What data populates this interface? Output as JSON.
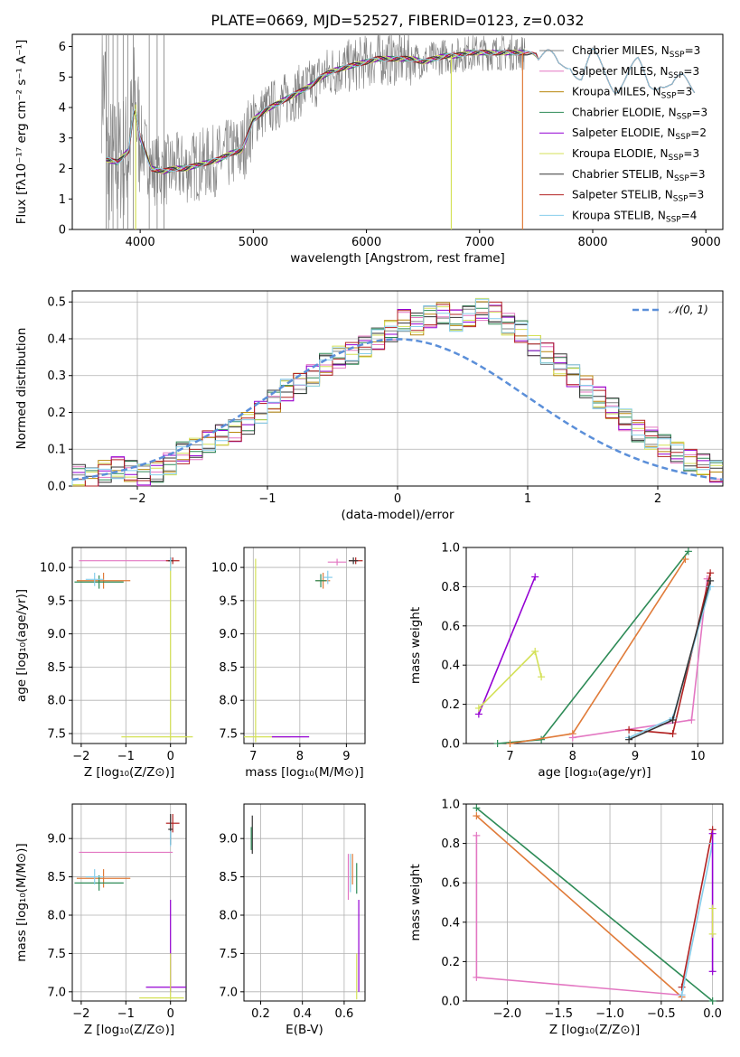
{
  "title": "PLATE=0669, MJD=52527, FIBERID=0123, z=0.032",
  "models": [
    {
      "name": "Chabrier MILES, N",
      "nssp": "3",
      "color": "#808080"
    },
    {
      "name": "Salpeter MILES, N",
      "nssp": "3",
      "color": "#e377c2"
    },
    {
      "name": "Kroupa MILES, N",
      "nssp": "3",
      "color": "#b8860b"
    },
    {
      "name": "Chabrier ELODIE, N",
      "nssp": "3",
      "color": "#2e8b57"
    },
    {
      "name": "Salpeter ELODIE, N",
      "nssp": "2",
      "color": "#9400d3"
    },
    {
      "name": "Kroupa ELODIE, N",
      "nssp": "3",
      "color": "#d4e157"
    },
    {
      "name": "Chabrier STELIB, N",
      "nssp": "3",
      "color": "#333333"
    },
    {
      "name": "Salpeter STELIB, N",
      "nssp": "3",
      "color": "#b22222"
    },
    {
      "name": "Kroupa STELIB, N",
      "nssp": "4",
      "color": "#87ceeb"
    }
  ],
  "nssp_sub": "SSP",
  "chart_data": [
    {
      "id": "spectrum",
      "type": "line",
      "xlabel": "wavelength [Angstrom, rest frame]",
      "ylabel": "Flux [fλ10⁻¹⁷ erg cm⁻² s⁻¹ A⁻¹]",
      "xlim": [
        3400,
        9150
      ],
      "ylim": [
        0,
        6.4
      ],
      "xticks": [
        "4000",
        "5000",
        "6000",
        "7000",
        "8000",
        "9000"
      ],
      "yticks": [
        "0",
        "1",
        "2",
        "3",
        "4",
        "5",
        "6"
      ],
      "continuum": {
        "x": [
          3700,
          3800,
          3900,
          3950,
          4000,
          4100,
          4200,
          4300,
          4400,
          4500,
          4600,
          4700,
          4800,
          4900,
          5000,
          5100,
          5200,
          5300,
          5400,
          5500,
          5600,
          5700,
          5800,
          5900,
          6000,
          6100,
          6200,
          6300,
          6400,
          6500,
          6600,
          6700,
          6800,
          6900,
          7000,
          7100,
          7200,
          7300,
          7400,
          7600,
          7700,
          7800,
          7900,
          8000,
          8100,
          8200,
          8300,
          8400,
          8500,
          8600,
          8700,
          8800,
          8900
        ],
        "y": [
          2.3,
          2.2,
          2.6,
          4.1,
          3.0,
          2.0,
          1.9,
          2.0,
          2.0,
          2.1,
          2.2,
          2.3,
          2.5,
          2.6,
          3.6,
          3.9,
          4.1,
          4.3,
          4.5,
          4.7,
          5.0,
          5.2,
          5.3,
          5.4,
          5.5,
          5.6,
          5.6,
          5.6,
          5.6,
          5.5,
          5.6,
          5.7,
          5.7,
          5.8,
          5.8,
          5.8,
          5.8,
          5.8,
          5.8,
          5.6,
          5.3,
          5.6,
          5.0,
          5.6,
          5.2,
          4.8,
          5.0,
          5.3,
          4.8,
          5.0,
          4.6,
          4.8,
          4.7
        ]
      },
      "series_names": [
        "data"
      ]
    },
    {
      "id": "residuals",
      "type": "histogram",
      "xlabel": "(data-model)/error",
      "ylabel": "Normed distribution",
      "xlim": [
        -2.5,
        2.5
      ],
      "ylim": [
        0,
        0.53
      ],
      "xticks": [
        "−2",
        "−1",
        "0",
        "1",
        "2"
      ],
      "yticks": [
        "0.0",
        "0.1",
        "0.2",
        "0.3",
        "0.4",
        "0.5"
      ],
      "bin_width": 0.1,
      "hist": [
        0.03,
        0.02,
        0.04,
        0.05,
        0.04,
        0.03,
        0.04,
        0.06,
        0.09,
        0.1,
        0.12,
        0.14,
        0.15,
        0.17,
        0.2,
        0.23,
        0.26,
        0.28,
        0.3,
        0.33,
        0.35,
        0.36,
        0.38,
        0.4,
        0.42,
        0.45,
        0.44,
        0.46,
        0.47,
        0.45,
        0.46,
        0.48,
        0.47,
        0.44,
        0.42,
        0.38,
        0.36,
        0.33,
        0.3,
        0.27,
        0.24,
        0.21,
        0.18,
        0.15,
        0.13,
        0.11,
        0.09,
        0.07,
        0.06,
        0.04
      ],
      "legend": "𝒩(0, 1)"
    },
    {
      "id": "age_vs_Z",
      "type": "scatter",
      "xlabel": "Z [log₁₀(Z/Z⊙)]",
      "ylabel": "age  [log₁₀(age/yr)]",
      "xlim": [
        -2.2,
        0.35
      ],
      "ylim": [
        7.35,
        10.3
      ],
      "xticks": [
        "−2",
        "−1",
        "0"
      ],
      "yticks": [
        "7.5",
        "8.0",
        "8.5",
        "9.0",
        "9.5",
        "10.0"
      ]
    },
    {
      "id": "age_vs_mass",
      "type": "scatter",
      "xlabel": "mass [log₁₀(M/M⊙)]",
      "xlim": [
        6.8,
        9.4
      ],
      "ylim": [
        7.35,
        10.3
      ],
      "xticks": [
        "7",
        "8",
        "9"
      ],
      "yticks": [
        "7.5",
        "8.0",
        "8.5",
        "9.0",
        "9.5",
        "10.0"
      ]
    },
    {
      "id": "weight_vs_age",
      "type": "line",
      "xlabel": "age  [log₁₀(age/yr)]",
      "ylabel": "mass weight",
      "xlim": [
        6.3,
        10.4
      ],
      "ylim": [
        0,
        1
      ],
      "xticks": [
        "7",
        "8",
        "9",
        "10"
      ],
      "yticks": [
        "0.0",
        "0.2",
        "0.4",
        "0.6",
        "0.8",
        "1.0"
      ],
      "series": [
        {
          "color": "#9400d3",
          "x": [
            6.5,
            7.4
          ],
          "y": [
            0.15,
            0.85
          ]
        },
        {
          "color": "#d4e157",
          "x": [
            6.5,
            7.4,
            7.5
          ],
          "y": [
            0.18,
            0.47,
            0.34
          ]
        },
        {
          "color": "#2e8b57",
          "x": [
            6.8,
            7.5,
            9.85
          ],
          "y": [
            0.0,
            0.02,
            0.98
          ]
        },
        {
          "color": "#e07b39",
          "x": [
            7.0,
            8.0,
            9.8
          ],
          "y": [
            0.0,
            0.05,
            0.94
          ]
        },
        {
          "color": "#e377c2",
          "x": [
            8.0,
            9.9,
            10.15
          ],
          "y": [
            0.03,
            0.12,
            0.84
          ]
        },
        {
          "color": "#b22222",
          "x": [
            8.9,
            9.6,
            10.2
          ],
          "y": [
            0.07,
            0.05,
            0.87
          ]
        },
        {
          "color": "#87ceeb",
          "x": [
            8.9,
            9.6,
            10.2
          ],
          "y": [
            0.03,
            0.13,
            0.8
          ]
        },
        {
          "color": "#333333",
          "x": [
            8.9,
            9.6,
            10.2
          ],
          "y": [
            0.02,
            0.12,
            0.83
          ]
        }
      ]
    },
    {
      "id": "mass_vs_Z",
      "type": "scatter",
      "xlabel": "Z [log₁₀(Z/Z⊙)]",
      "ylabel": "mass [log₁₀(M/M⊙)]",
      "xlim": [
        -2.2,
        0.35
      ],
      "ylim": [
        6.88,
        9.45
      ],
      "xticks": [
        "−2",
        "−1",
        "0"
      ],
      "yticks": [
        "7.0",
        "7.5",
        "8.0",
        "8.5",
        "9.0"
      ]
    },
    {
      "id": "mass_vs_ebv",
      "type": "scatter",
      "xlabel": "E(B-V)",
      "xlim": [
        0.12,
        0.7
      ],
      "ylim": [
        6.88,
        9.45
      ],
      "xticks": [
        "0.2",
        "0.4",
        "0.6"
      ],
      "yticks": [
        "7.0",
        "7.5",
        "8.0",
        "8.5",
        "9.0"
      ]
    },
    {
      "id": "weight_vs_Z",
      "type": "line",
      "xlabel": "Z [log₁₀(Z/Z⊙)]",
      "ylabel": "mass weight",
      "xlim": [
        -2.4,
        0.1
      ],
      "ylim": [
        0,
        1
      ],
      "xticks": [
        "−2.0",
        "−1.5",
        "−1.0",
        "−0.5",
        "0.0"
      ],
      "yticks": [
        "0.0",
        "0.2",
        "0.4",
        "0.6",
        "0.8",
        "1.0"
      ],
      "series": [
        {
          "color": "#2e8b57",
          "x": [
            -2.3,
            0.0
          ],
          "y": [
            0.98,
            0.0
          ]
        },
        {
          "color": "#e07b39",
          "x": [
            -2.3,
            -0.3
          ],
          "y": [
            0.94,
            0.02
          ]
        },
        {
          "color": "#e377c2",
          "x": [
            -2.3,
            -2.3,
            -0.3
          ],
          "y": [
            0.84,
            0.12,
            0.03
          ]
        },
        {
          "color": "#b22222",
          "x": [
            -0.3,
            0.0
          ],
          "y": [
            0.07,
            0.87
          ]
        },
        {
          "color": "#87ceeb",
          "x": [
            -0.3,
            0.0
          ],
          "y": [
            0.03,
            0.8
          ]
        },
        {
          "color": "#9400d3",
          "x": [
            0.0,
            0.0
          ],
          "y": [
            0.15,
            0.85
          ]
        },
        {
          "color": "#d4e157",
          "x": [
            0.0,
            0.0
          ],
          "y": [
            0.47,
            0.34
          ]
        }
      ]
    }
  ]
}
